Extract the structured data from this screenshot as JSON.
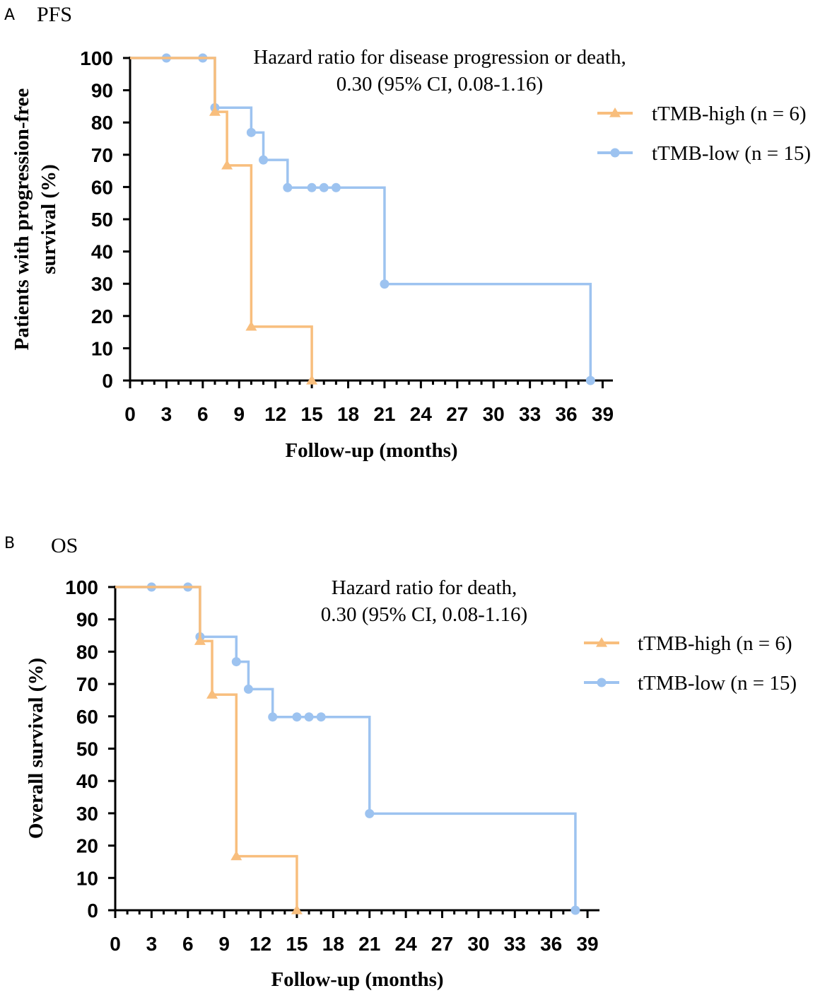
{
  "chart_data": [
    {
      "type": "line",
      "panel": "A",
      "title": "PFS",
      "annotation": [
        "Hazard ratio for disease progression or death,",
        "0.30 (95% CI, 0.08-1.16)"
      ],
      "xlabel": "Follow-up (months)",
      "ylabel": [
        "Patients with progression-free",
        "survival (%)"
      ],
      "xlim": [
        0,
        40
      ],
      "ylim": [
        0,
        100
      ],
      "xticks": [
        0,
        3,
        6,
        9,
        12,
        15,
        18,
        21,
        24,
        27,
        30,
        33,
        36,
        39
      ],
      "yticks": [
        0,
        10,
        20,
        30,
        40,
        50,
        60,
        70,
        80,
        90,
        100
      ],
      "series": [
        {
          "name": "tTMB-high (n = 6)",
          "color": "#F8BE7D",
          "marker": "triangle",
          "steps": [
            [
              0,
              100
            ],
            [
              7,
              83.3
            ],
            [
              8,
              66.7
            ],
            [
              10,
              16.7
            ],
            [
              15,
              0
            ]
          ],
          "markers": [
            [
              7,
              83.3
            ],
            [
              8,
              66.7
            ],
            [
              10,
              16.7
            ],
            [
              15,
              0
            ]
          ]
        },
        {
          "name": "tTMB-low (n = 15)",
          "color": "#9DC3F0",
          "marker": "circle",
          "steps": [
            [
              0,
              100
            ],
            [
              7,
              84.6
            ],
            [
              10,
              76.9
            ],
            [
              11,
              68.4
            ],
            [
              13,
              59.8
            ],
            [
              21,
              29.9
            ],
            [
              38,
              0
            ]
          ],
          "markers": [
            [
              3,
              100
            ],
            [
              6,
              100
            ],
            [
              7,
              84.6
            ],
            [
              10,
              76.9
            ],
            [
              11,
              68.4
            ],
            [
              13,
              59.8
            ],
            [
              15,
              59.8
            ],
            [
              16,
              59.8
            ],
            [
              17,
              59.8
            ],
            [
              21,
              29.9
            ],
            [
              38,
              0
            ]
          ]
        }
      ]
    },
    {
      "type": "line",
      "panel": "B",
      "title": "OS",
      "annotation": [
        "Hazard ratio for death,",
        "0.30 (95% CI, 0.08-1.16)"
      ],
      "xlabel": "Follow-up (months)",
      "ylabel": [
        "Overall survival (%)"
      ],
      "xlim": [
        0,
        40
      ],
      "ylim": [
        0,
        100
      ],
      "xticks": [
        0,
        3,
        6,
        9,
        12,
        15,
        18,
        21,
        24,
        27,
        30,
        33,
        36,
        39
      ],
      "yticks": [
        0,
        10,
        20,
        30,
        40,
        50,
        60,
        70,
        80,
        90,
        100
      ],
      "series": [
        {
          "name": "tTMB-high (n = 6)",
          "color": "#F8BE7D",
          "marker": "triangle",
          "steps": [
            [
              0,
              100
            ],
            [
              7,
              83.3
            ],
            [
              8,
              66.7
            ],
            [
              10,
              16.7
            ],
            [
              15,
              0
            ]
          ],
          "markers": [
            [
              7,
              83.3
            ],
            [
              8,
              66.7
            ],
            [
              10,
              16.7
            ],
            [
              15,
              0
            ]
          ]
        },
        {
          "name": "tTMB-low (n = 15)",
          "color": "#9DC3F0",
          "marker": "circle",
          "steps": [
            [
              0,
              100
            ],
            [
              7,
              84.6
            ],
            [
              10,
              76.9
            ],
            [
              11,
              68.4
            ],
            [
              13,
              59.8
            ],
            [
              21,
              29.9
            ],
            [
              38,
              0
            ]
          ],
          "markers": [
            [
              3,
              100
            ],
            [
              6,
              100
            ],
            [
              7,
              84.6
            ],
            [
              10,
              76.9
            ],
            [
              11,
              68.4
            ],
            [
              13,
              59.8
            ],
            [
              15,
              59.8
            ],
            [
              16,
              59.8
            ],
            [
              17,
              59.8
            ],
            [
              21,
              29.9
            ],
            [
              38,
              0
            ]
          ]
        }
      ]
    }
  ]
}
